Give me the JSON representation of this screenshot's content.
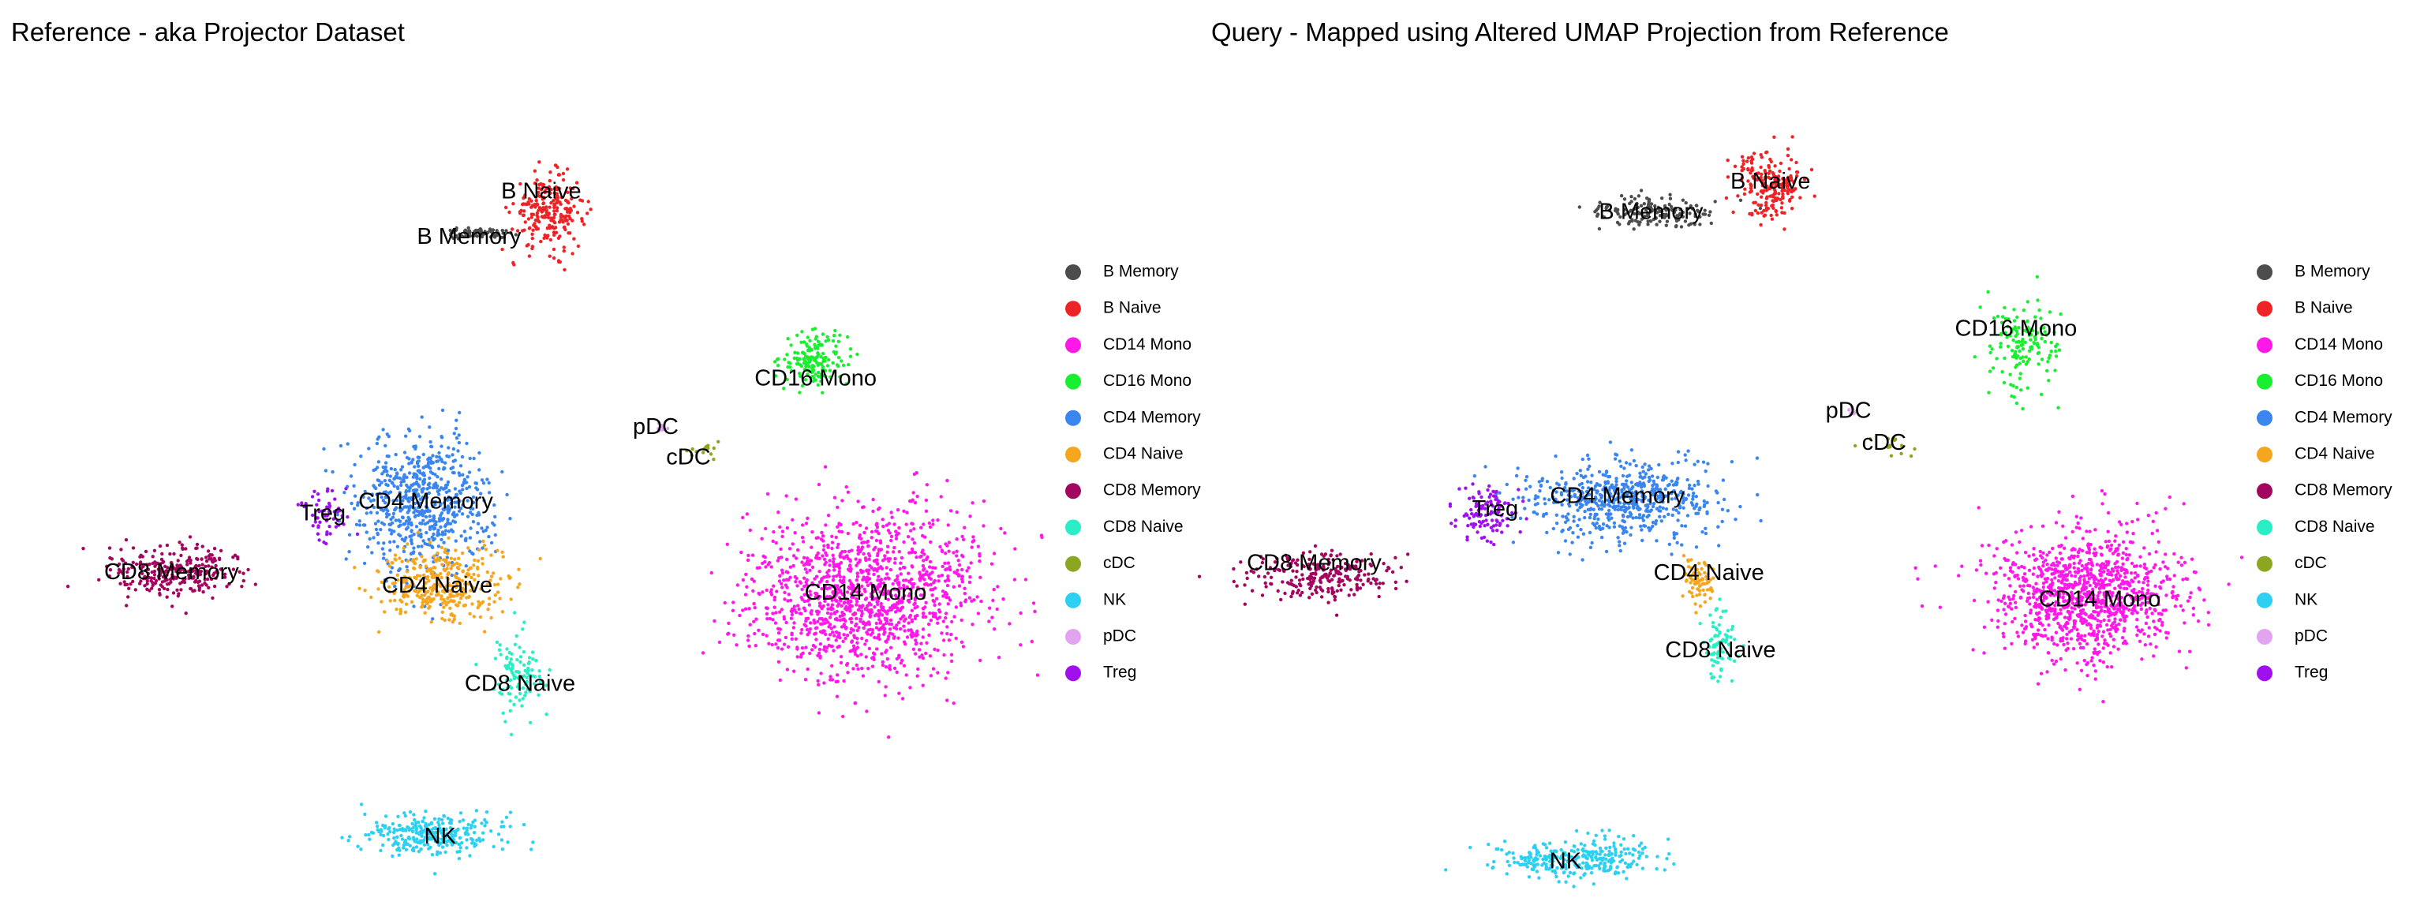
{
  "colors": {
    "B Memory": "#4d4d4d",
    "B Naive": "#ee2326",
    "CD14 Mono": "#ff19e8",
    "CD16 Mono": "#19ee30",
    "CD4 Memory": "#3a86ee",
    "CD4 Naive": "#f5a61f",
    "CD8 Memory": "#a3065f",
    "CD8 Naive": "#29eec6",
    "cDC": "#8aa71f",
    "NK": "#2dd0f1",
    "pDC": "#e2a3f1",
    "Treg": "#a010ee"
  },
  "chart_data": [
    {
      "type": "scatter",
      "title": "Reference - aka Projector Dataset",
      "xlabel": "",
      "ylabel": "",
      "grid": false,
      "axes_visible": false,
      "xlim": [
        0,
        100
      ],
      "ylim": [
        0,
        100
      ],
      "legend_position": "right",
      "legend": [
        "B Memory",
        "B Naive",
        "CD14 Mono",
        "CD16 Mono",
        "CD4 Memory",
        "CD4 Naive",
        "CD8 Memory",
        "CD8 Naive",
        "cDC",
        "NK",
        "pDC",
        "Treg"
      ],
      "clusters": [
        {
          "cell_type": "B Naive",
          "label": "B Naive",
          "center": [
            52.1,
            82.8
          ],
          "spread": [
            3.0,
            3.6
          ],
          "n": 240,
          "label_pos": [
            51.3,
            85.2
          ]
        },
        {
          "cell_type": "B Memory",
          "label": "B Memory",
          "center": [
            44.9,
            80.2
          ],
          "spread": [
            2.8,
            0.5
          ],
          "n": 70,
          "label_pos": [
            43.8,
            79.7
          ]
        },
        {
          "cell_type": "CD16 Mono",
          "label": "CD16 Mono",
          "center": [
            79.7,
            65.0
          ],
          "spread": [
            2.8,
            2.6
          ],
          "n": 160,
          "label_pos": [
            79.8,
            62.4
          ]
        },
        {
          "cell_type": "pDC",
          "label": "pDC",
          "center": [
            64.0,
            56.6
          ],
          "spread": [
            0.4,
            0.4
          ],
          "n": 10,
          "label_pos": [
            63.2,
            56.5
          ]
        },
        {
          "cell_type": "cDC",
          "label": "cDC",
          "center": [
            67.8,
            53.9
          ],
          "spread": [
            1.4,
            0.9
          ],
          "n": 14,
          "label_pos": [
            66.6,
            52.8
          ]
        },
        {
          "cell_type": "CD4 Memory",
          "label": "CD4 Memory",
          "center": [
            39.1,
            47.4
          ],
          "spread": [
            5.6,
            6.8
          ],
          "n": 650,
          "label_pos": [
            39.3,
            47.4
          ]
        },
        {
          "cell_type": "Treg",
          "label": "Treg",
          "center": [
            28.9,
            46.3
          ],
          "spread": [
            2.2,
            2.9
          ],
          "n": 55,
          "label_pos": [
            28.6,
            46.0
          ]
        },
        {
          "cell_type": "CD8 Memory",
          "label": "CD8 Memory",
          "center": [
            13.4,
            39.1
          ],
          "spread": [
            5.8,
            2.6
          ],
          "n": 280,
          "label_pos": [
            12.9,
            38.8
          ]
        },
        {
          "cell_type": "CD4 Naive",
          "label": "CD4 Naive",
          "center": [
            40.7,
            37.5
          ],
          "spread": [
            5.4,
            3.5
          ],
          "n": 340,
          "label_pos": [
            40.5,
            37.2
          ]
        },
        {
          "cell_type": "CD8 Naive",
          "label": "CD8 Naive",
          "center": [
            48.9,
            26.5
          ],
          "spread": [
            1.9,
            3.7
          ],
          "n": 110,
          "label_pos": [
            49.1,
            25.2
          ]
        },
        {
          "cell_type": "CD14 Mono",
          "label": "CD14 Mono",
          "center": [
            84.9,
            36.1
          ],
          "spread": [
            9.7,
            8.1
          ],
          "n": 1300,
          "label_pos": [
            85.0,
            36.3
          ]
        },
        {
          "cell_type": "NK",
          "label": "NK",
          "center": [
            40.1,
            7.0
          ],
          "spread": [
            6.0,
            2.0
          ],
          "n": 300,
          "label_pos": [
            40.8,
            6.6
          ]
        }
      ]
    },
    {
      "type": "scatter",
      "title": "Query - Mapped using Altered UMAP Projection from Reference",
      "xlabel": "",
      "ylabel": "",
      "grid": false,
      "axes_visible": false,
      "xlim": [
        0,
        100
      ],
      "ylim": [
        0,
        100
      ],
      "legend_position": "right",
      "legend": [
        "B Memory",
        "B Naive",
        "CD14 Mono",
        "CD16 Mono",
        "CD4 Memory",
        "CD4 Naive",
        "CD8 Memory",
        "CD8 Naive",
        "cDC",
        "NK",
        "pDC",
        "Treg"
      ],
      "clusters": [
        {
          "cell_type": "B Naive",
          "label": "B Naive",
          "center": [
            53.8,
            86.4
          ],
          "spread": [
            2.8,
            3.6
          ],
          "n": 200,
          "label_pos": [
            54.0,
            86.4
          ]
        },
        {
          "cell_type": "B Memory",
          "label": "B Memory",
          "center": [
            42.1,
            82.7
          ],
          "spread": [
            5.2,
            1.6
          ],
          "n": 160,
          "label_pos": [
            41.6,
            82.7
          ]
        },
        {
          "cell_type": "CD16 Mono",
          "label": "CD16 Mono",
          "center": [
            80.1,
            66.5
          ],
          "spread": [
            2.8,
            4.3
          ],
          "n": 150,
          "label_pos": [
            79.5,
            68.5
          ]
        },
        {
          "cell_type": "pDC",
          "label": "pDC",
          "center": [
            62.8,
            58.5
          ],
          "spread": [
            0.5,
            0.5
          ],
          "n": 8,
          "label_pos": [
            62.1,
            58.5
          ]
        },
        {
          "cell_type": "cDC",
          "label": "cDC",
          "center": [
            67.0,
            54.4
          ],
          "spread": [
            2.0,
            1.0
          ],
          "n": 14,
          "label_pos": [
            65.8,
            54.6
          ]
        },
        {
          "cell_type": "CD4 Memory",
          "label": "CD4 Memory",
          "center": [
            38.6,
            47.7
          ],
          "spread": [
            8.1,
            3.8
          ],
          "n": 600,
          "label_pos": [
            38.1,
            48.1
          ]
        },
        {
          "cell_type": "Treg",
          "label": "Treg",
          "center": [
            24.6,
            46.2
          ],
          "spread": [
            2.7,
            2.8
          ],
          "n": 110,
          "label_pos": [
            25.4,
            46.5
          ]
        },
        {
          "cell_type": "CD8 Memory",
          "label": "CD8 Memory",
          "center": [
            7.4,
            38.3
          ],
          "spread": [
            6.0,
            2.4
          ],
          "n": 250,
          "label_pos": [
            6.6,
            39.9
          ]
        },
        {
          "cell_type": "CD4 Naive",
          "label": "CD4 Naive",
          "center": [
            46.4,
            37.9
          ],
          "spread": [
            1.4,
            2.3
          ],
          "n": 80,
          "label_pos": [
            47.6,
            38.7
          ]
        },
        {
          "cell_type": "CD8 Naive",
          "label": "CD8 Naive",
          "center": [
            48.8,
            30.2
          ],
          "spread": [
            1.2,
            3.4
          ],
          "n": 80,
          "label_pos": [
            48.8,
            29.3
          ]
        },
        {
          "cell_type": "CD14 Mono",
          "label": "CD14 Mono",
          "center": [
            86.8,
            36.4
          ],
          "spread": [
            7.6,
            6.2
          ],
          "n": 1100,
          "label_pos": [
            88.2,
            35.5
          ]
        },
        {
          "cell_type": "NK",
          "label": "NK",
          "center": [
            34.0,
            4.0
          ],
          "spread": [
            6.6,
            1.8
          ],
          "n": 300,
          "label_pos": [
            32.7,
            3.6
          ]
        }
      ]
    }
  ]
}
